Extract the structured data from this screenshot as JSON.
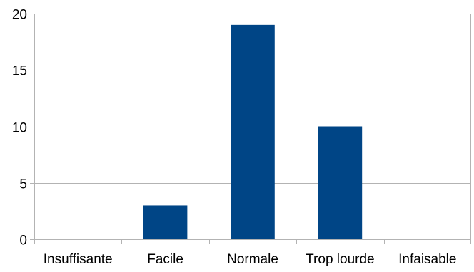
{
  "chart_data": {
    "type": "bar",
    "categories": [
      "Insuffisante",
      "Facile",
      "Normale",
      "Trop lourde",
      "Infaisable"
    ],
    "values": [
      0,
      3,
      19,
      10,
      0
    ],
    "ylim": [
      0,
      20
    ],
    "yticks": [
      0,
      5,
      10,
      15,
      20
    ],
    "grid": true,
    "legend": "none",
    "title": "",
    "xlabel": "",
    "ylabel": "",
    "colors": {
      "bar": "#004586",
      "grid": "#b3b3b3",
      "axis": "#b3b3b3"
    }
  }
}
